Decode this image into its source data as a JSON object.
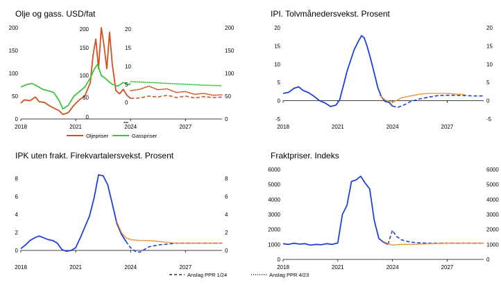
{
  "colors": {
    "blue": "#1f3fd9",
    "orange": "#d2501e",
    "green": "#3cc43c",
    "dotorange": "#e8912e",
    "axis": "#000000"
  },
  "legend": {
    "oil": "Oljepriser",
    "gas": "Gasspriser",
    "ppr124": "Anslag PPR 1/24",
    "ppr423": "Anslag PPR 4/23"
  },
  "chart_data": [
    {
      "type": "line",
      "title": "Olje og gass. USD/fat",
      "xlabel": "",
      "ylabel": "",
      "xlim": [
        2018,
        2029
      ],
      "ylim": [
        0,
        200
      ],
      "x_ticks": [
        "2018",
        "2021",
        "2024",
        "2027"
      ],
      "y_ticks_left": [
        "0",
        "50",
        "100",
        "150",
        "200"
      ],
      "y_ticks_right": [
        "0",
        "50",
        "100",
        "150",
        "200"
      ],
      "inset_ticks": [
        "200",
        "150",
        "100",
        "50",
        "0",
        "20",
        "15",
        "10",
        "5",
        "0"
      ],
      "legend": "bottom",
      "series": [
        {
          "name": "Oljepriser",
          "color": "orange",
          "style": "solid",
          "x": [
            2018,
            2018.2,
            2018.5,
            2018.8,
            2019,
            2019.3,
            2019.6,
            2019.9,
            2020.1,
            2020.3,
            2020.6,
            2020.9,
            2021.2,
            2021.5,
            2021.8,
            2021.95,
            2022.1,
            2022.25,
            2022.4,
            2022.55,
            2022.7,
            2022.85,
            2023,
            2023.2,
            2023.4,
            2023.6,
            2023.8,
            2024
          ],
          "y": [
            35,
            42,
            40,
            48,
            38,
            36,
            28,
            22,
            18,
            10,
            14,
            30,
            42,
            50,
            80,
            140,
            175,
            110,
            200,
            160,
            110,
            190,
            120,
            62,
            55,
            65,
            52,
            45
          ]
        },
        {
          "name": "Gasspriser",
          "color": "green",
          "style": "solid",
          "x": [
            2018,
            2018.3,
            2018.6,
            2018.9,
            2019.2,
            2019.5,
            2019.8,
            2020.1,
            2020.3,
            2020.6,
            2020.9,
            2021.2,
            2021.5,
            2021.8,
            2022,
            2022.2,
            2022.4,
            2022.6,
            2022.8,
            2023,
            2023.3,
            2023.6,
            2023.9,
            2024
          ],
          "y": [
            70,
            75,
            78,
            72,
            65,
            62,
            58,
            40,
            22,
            30,
            50,
            60,
            70,
            90,
            108,
            120,
            95,
            90,
            82,
            76,
            72,
            80,
            75,
            78
          ]
        },
        {
          "name": "",
          "color": "orange",
          "style": "dashed",
          "x": [
            2024,
            2024.5,
            2025,
            2025.5,
            2026,
            2026.5,
            2027,
            2027.5,
            2028,
            2028.5,
            2029
          ],
          "y": [
            45,
            46,
            50,
            48,
            52,
            47,
            50,
            46,
            49,
            47,
            48
          ]
        },
        {
          "name": "",
          "color": "orange",
          "style": "dotted",
          "x": [
            2024,
            2024.5,
            2025,
            2025.5,
            2026,
            2026.5,
            2027,
            2027.5,
            2028,
            2028.5,
            2029
          ],
          "y": [
            62,
            65,
            72,
            64,
            66,
            58,
            60,
            54,
            56,
            52,
            53
          ]
        },
        {
          "name": "",
          "color": "green",
          "style": "dotted",
          "x": [
            2024,
            2025,
            2026,
            2027,
            2028,
            2029
          ],
          "y": [
            82,
            80,
            78,
            76,
            74,
            73
          ]
        }
      ]
    },
    {
      "type": "line",
      "title": "IPI. Tolvmånedersvekst. Prosent",
      "xlabel": "",
      "ylabel": "",
      "xlim": [
        2018,
        2029
      ],
      "ylim": [
        -5,
        20
      ],
      "x_ticks": [
        "2018",
        "2021",
        "2024",
        "2027"
      ],
      "y_ticks_left": [
        "-5",
        "0",
        "5",
        "10",
        "15",
        "20"
      ],
      "y_ticks_right": [
        "-5",
        "0",
        "5",
        "10",
        "15",
        "20"
      ],
      "series": [
        {
          "name": "",
          "color": "blue",
          "style": "solid",
          "x": [
            2018,
            2018.3,
            2018.6,
            2018.85,
            2019.1,
            2019.4,
            2019.7,
            2020,
            2020.3,
            2020.6,
            2020.9,
            2021.1,
            2021.3,
            2021.5,
            2021.7,
            2021.9,
            2022.1,
            2022.3,
            2022.45,
            2022.6,
            2022.8,
            2023,
            2023.2,
            2023.4,
            2023.6,
            2023.8,
            2024
          ],
          "y": [
            2,
            2.3,
            3.4,
            3.8,
            2.8,
            2.2,
            1.2,
            0,
            -0.6,
            -1.6,
            -1.2,
            0.2,
            4,
            8,
            11,
            14,
            16,
            17.8,
            17.2,
            15,
            11.5,
            7.5,
            3.5,
            1,
            -0.2,
            -0.4,
            -1.5
          ]
        },
        {
          "name": "",
          "color": "blue",
          "style": "dashed",
          "x": [
            2024,
            2024.3,
            2024.7,
            2025,
            2025.5,
            2026,
            2026.5,
            2027,
            2027.5,
            2028,
            2028.5,
            2029
          ],
          "y": [
            -1.5,
            -1.8,
            -1,
            -0.2,
            0.5,
            1,
            1.4,
            1.5,
            1.5,
            1.4,
            1.3,
            1.3
          ]
        },
        {
          "name": "",
          "color": "dotorange",
          "style": "dotted",
          "x": [
            2023.3,
            2023.6,
            2024,
            2024.5,
            2025,
            2025.5,
            2026,
            2026.5,
            2027,
            2027.5,
            2028
          ],
          "y": [
            1.5,
            0.2,
            -0.5,
            0.8,
            1.3,
            1.8,
            2,
            2,
            2,
            1.8,
            1.7
          ]
        }
      ]
    },
    {
      "type": "line",
      "title": "IPK uten frakt. Firekvartalersvekst. Prosent",
      "xlabel": "",
      "ylabel": "",
      "xlim": [
        2018,
        2029
      ],
      "ylim": [
        -1,
        9
      ],
      "x_ticks": [
        "2018",
        "2021",
        "2024",
        "2027"
      ],
      "y_ticks_left": [
        "0",
        "2",
        "4",
        "6",
        "8"
      ],
      "y_ticks_right": [
        "0",
        "2",
        "4",
        "6",
        "8"
      ],
      "series": [
        {
          "name": "",
          "color": "blue",
          "style": "solid",
          "x": [
            2018,
            2018.25,
            2018.5,
            2018.75,
            2019,
            2019.25,
            2019.5,
            2019.75,
            2020,
            2020.25,
            2020.5,
            2020.75,
            2021,
            2021.25,
            2021.5,
            2021.75,
            2022,
            2022.25,
            2022.5,
            2022.75,
            2023,
            2023.25,
            2023.5,
            2023.75
          ],
          "y": [
            0.2,
            0.6,
            1.1,
            1.4,
            1.6,
            1.4,
            1.2,
            1.1,
            0.8,
            0.1,
            -0.1,
            0,
            0.3,
            1.4,
            2.6,
            3.8,
            5.8,
            8.4,
            8.3,
            7.3,
            5.2,
            3,
            1.8,
            1
          ]
        },
        {
          "name": "",
          "color": "blue",
          "style": "dashed",
          "x": [
            2023.75,
            2024,
            2024.25,
            2024.5,
            2024.75,
            2025,
            2025.5,
            2026,
            2026.5,
            2027,
            2027.5,
            2028,
            2028.5,
            2029
          ],
          "y": [
            1,
            0.3,
            -0.1,
            -0.2,
            0.1,
            0.4,
            0.6,
            0.7,
            0.8,
            0.8,
            0.8,
            0.8,
            0.8,
            0.8
          ]
        },
        {
          "name": "",
          "color": "dotorange",
          "style": "dotted",
          "x": [
            2023.25,
            2023.5,
            2023.75,
            2024,
            2024.5,
            2025,
            2025.5,
            2026,
            2026.5,
            2027,
            2027.5,
            2028,
            2028.5,
            2029
          ],
          "y": [
            3.2,
            2,
            1.4,
            1.2,
            1.1,
            1.1,
            1,
            0.9,
            0.8,
            0.8,
            0.8,
            0.8,
            0.8,
            0.8
          ]
        }
      ]
    },
    {
      "type": "line",
      "title": "Fraktpriser. Indeks",
      "xlabel": "",
      "ylabel": "",
      "xlim": [
        2018,
        2029
      ],
      "ylim": [
        0,
        6000
      ],
      "x_ticks": [
        "2018",
        "2021",
        "2024",
        "2027"
      ],
      "y_ticks_left": [
        "0",
        "1000",
        "2000",
        "3000",
        "4000",
        "5000",
        "6000"
      ],
      "y_ticks_right": [
        "0",
        "1000",
        "2000",
        "3000",
        "4000",
        "5000",
        "6000"
      ],
      "series": [
        {
          "name": "",
          "color": "blue",
          "style": "solid",
          "x": [
            2018,
            2018.3,
            2018.6,
            2018.9,
            2019.2,
            2019.5,
            2019.8,
            2020.1,
            2020.4,
            2020.7,
            2021,
            2021.25,
            2021.5,
            2021.75,
            2022,
            2022.25,
            2022.5,
            2022.75,
            2023,
            2023.25,
            2023.5,
            2023.75
          ],
          "y": [
            1050,
            1000,
            1080,
            1020,
            1050,
            950,
            1000,
            980,
            1050,
            1000,
            1100,
            3000,
            3600,
            5200,
            5300,
            5550,
            5100,
            4700,
            2600,
            1400,
            1150,
            1000
          ]
        },
        {
          "name": "",
          "color": "blue",
          "style": "dashed",
          "x": [
            2023.75,
            2024,
            2024.2,
            2024.5,
            2025,
            2025.5,
            2026,
            2027,
            2028,
            2029
          ],
          "y": [
            1000,
            1950,
            1550,
            1300,
            1150,
            1100,
            1080,
            1080,
            1080,
            1080
          ]
        },
        {
          "name": "",
          "color": "dotorange",
          "style": "dotted",
          "x": [
            2023.5,
            2023.75,
            2024,
            2024.5,
            2025,
            2025.5,
            2026,
            2027,
            2028,
            2029
          ],
          "y": [
            1200,
            1050,
            950,
            1000,
            1000,
            1020,
            1050,
            1080,
            1080,
            1080
          ]
        }
      ]
    }
  ]
}
